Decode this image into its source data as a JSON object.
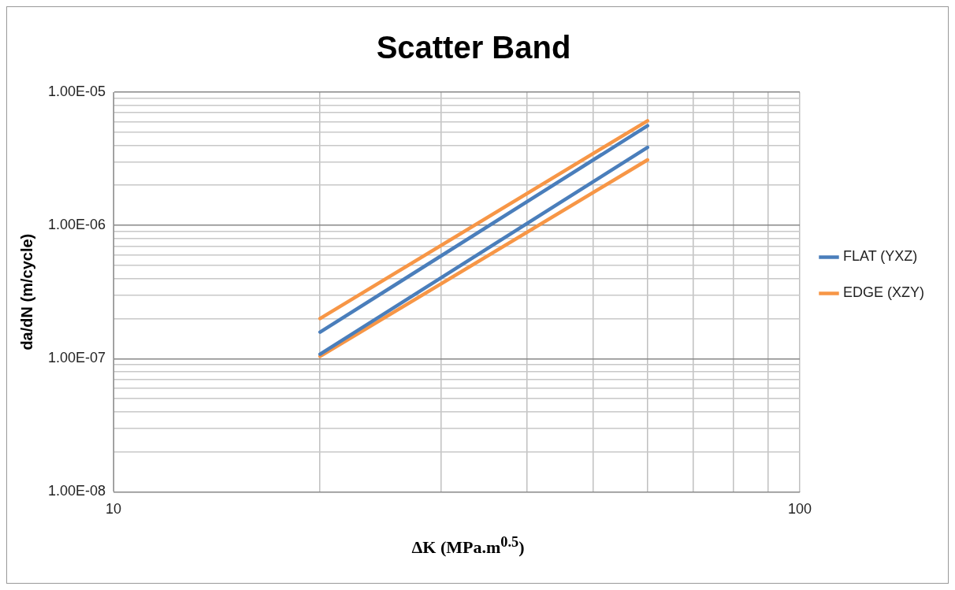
{
  "chart_data": {
    "type": "line",
    "title": "Scatter Band",
    "xlabel": "ΔK (MPa.m$^{0.5}$)",
    "ylabel": "da/dN (m/cycle)",
    "x": [
      20,
      60
    ],
    "series": [
      {
        "name": "FLAT (YXZ)",
        "color": "#4a7ebb",
        "values": [
          1.58e-07,
          5.6e-06
        ]
      },
      {
        "color": "#4a7ebb",
        "values": [
          1.08e-07,
          3.85e-06
        ]
      },
      {
        "name": "EDGE (XZY)",
        "color": "#f79646",
        "values": [
          2e-07,
          6.1e-06
        ]
      },
      {
        "color": "#f79646",
        "values": [
          1.04e-07,
          3.1e-06
        ]
      }
    ],
    "log": "xy",
    "xlim": [
      10,
      100
    ],
    "ylim": [
      1e-08,
      1e-05
    ],
    "xticks": [
      10,
      {
        "value": 20,
        "label": null
      },
      {
        "value": 30,
        "label": null
      },
      {
        "value": 40,
        "label": null
      },
      {
        "value": 50,
        "label": null
      },
      {
        "value": 60,
        "label": null
      },
      {
        "value": 70,
        "label": null
      },
      {
        "value": 80,
        "label": null
      },
      {
        "value": 90,
        "label": null
      },
      100
    ],
    "yticks": [
      {
        "value": 1e-08,
        "label": "1.00E-08"
      },
      {
        "value": 2e-08,
        "label": null
      },
      {
        "value": 3e-08,
        "label": null
      },
      {
        "value": 4e-08,
        "label": null
      },
      {
        "value": 5e-08,
        "label": null
      },
      {
        "value": 6e-08,
        "label": null
      },
      {
        "value": 7e-08,
        "label": null
      },
      {
        "value": 8e-08,
        "label": null
      },
      {
        "value": 9e-08,
        "label": null
      },
      {
        "value": 1e-07,
        "label": "1.00E-07"
      },
      {
        "value": 2e-07,
        "label": null
      },
      {
        "value": 3e-07,
        "label": null
      },
      {
        "value": 4e-07,
        "label": null
      },
      {
        "value": 5e-07,
        "label": null
      },
      {
        "value": 6e-07,
        "label": null
      },
      {
        "value": 7e-07,
        "label": null
      },
      {
        "value": 8e-07,
        "label": null
      },
      {
        "value": 9e-07,
        "label": null
      },
      {
        "value": 1e-06,
        "label": "1.00E-06"
      },
      {
        "value": 2e-06,
        "label": null
      },
      {
        "value": 3e-06,
        "label": null
      },
      {
        "value": 4e-06,
        "label": null
      },
      {
        "value": 5e-06,
        "label": null
      },
      {
        "value": 6e-06,
        "label": null
      },
      {
        "value": 7e-06,
        "label": null
      },
      {
        "value": 8e-06,
        "label": null
      },
      {
        "value": 9e-06,
        "label": null
      },
      {
        "value": 1e-05,
        "label": "1.00E-05"
      }
    ],
    "grid": true,
    "legend": "right",
    "marker": "none",
    "line_style": "solid"
  }
}
